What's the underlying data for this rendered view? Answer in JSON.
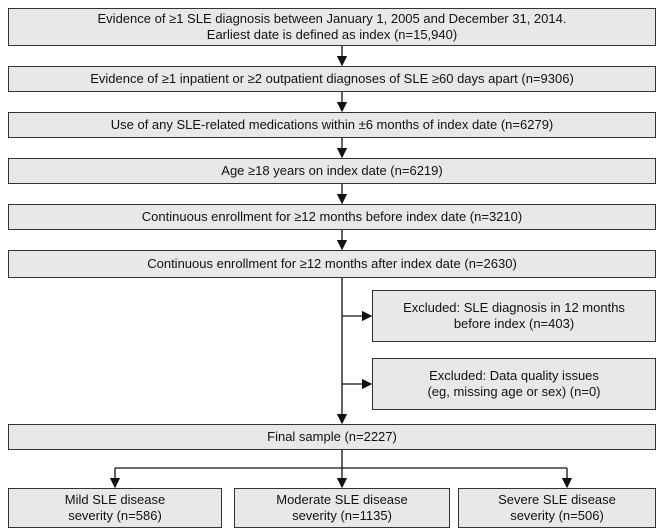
{
  "nodes": [
    {
      "lines": [
        "Evidence of ≥1 SLE diagnosis between January 1, 2005 and December 31, 2014.",
        "Earliest date is defined as index (n=15,940)"
      ]
    },
    {
      "lines": [
        "Evidence of ≥1 inpatient or ≥2 outpatient diagnoses of SLE ≥60 days apart (n=9306)"
      ]
    },
    {
      "lines": [
        "Use of any SLE-related medications within ±6 months of index date (n=6279)"
      ]
    },
    {
      "lines": [
        "Age ≥18 years on index date (n=6219)"
      ]
    },
    {
      "lines": [
        "Continuous enrollment for ≥12 months before index date (n=3210)"
      ]
    },
    {
      "lines": [
        "Continuous enrollment for ≥12 months after index date (n=2630)"
      ]
    },
    {
      "lines": [
        "Excluded: SLE diagnosis in 12 months",
        "before index (n=403)"
      ]
    },
    {
      "lines": [
        "Excluded: Data quality issues",
        "(eg, missing age or sex) (n=0)"
      ]
    },
    {
      "lines": [
        "Final sample (n=2227)"
      ]
    },
    {
      "lines": [
        "Mild SLE disease",
        "severity (n=586)"
      ]
    },
    {
      "lines": [
        "Moderate SLE disease",
        "severity (n=1135)"
      ]
    },
    {
      "lines": [
        "Severe SLE disease",
        "severity (n=506)"
      ]
    }
  ]
}
